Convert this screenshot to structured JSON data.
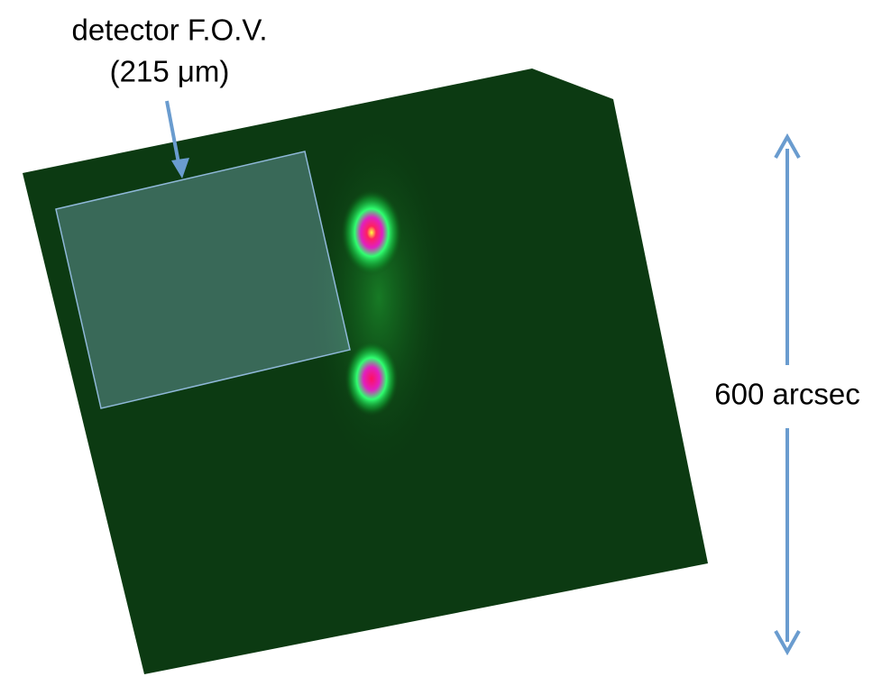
{
  "annotations": {
    "fov_label": "detector F.O.V.",
    "wavelength_label": "(215 μm)",
    "scale_label": "600 arcsec"
  }
}
